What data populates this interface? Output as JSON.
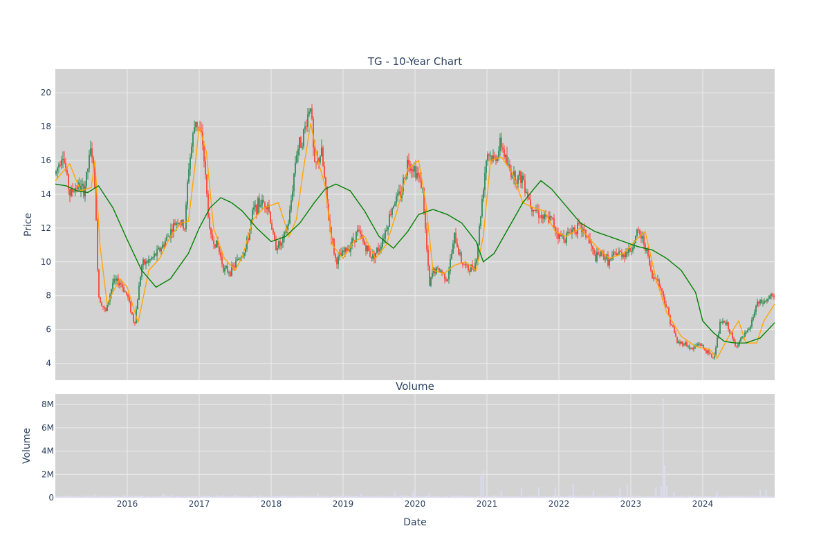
{
  "colors": {
    "plot_bg": "#d3d3d3",
    "grid": "#ececec",
    "increasing": "#2e8b57",
    "decreasing": "#ff4136",
    "ma_short": "#ffa500",
    "ma_long": "#008000",
    "volume": "#dcdcf0"
  },
  "chart_data": [
    {
      "type": "candlestick",
      "title": "TG - 10-Year Chart",
      "xlabel": "",
      "ylabel": "Price",
      "ylim": [
        3,
        21.4
      ],
      "yticks": [
        4,
        6,
        8,
        10,
        12,
        14,
        16,
        18,
        20
      ],
      "xlim": [
        2015.0,
        2025.0
      ],
      "grid": true,
      "close_approx": {
        "x": [
          2015.0,
          2015.1,
          2015.2,
          2015.3,
          2015.4,
          2015.5,
          2015.55,
          2015.6,
          2015.7,
          2015.8,
          2015.9,
          2016.0,
          2016.1,
          2016.2,
          2016.35,
          2016.5,
          2016.6,
          2016.7,
          2016.8,
          2016.85,
          2016.95,
          2017.05,
          2017.15,
          2017.25,
          2017.35,
          2017.45,
          2017.55,
          2017.65,
          2017.75,
          2017.85,
          2017.95,
          2018.05,
          2018.15,
          2018.25,
          2018.35,
          2018.45,
          2018.55,
          2018.6,
          2018.7,
          2018.8,
          2018.9,
          2019.0,
          2019.1,
          2019.2,
          2019.3,
          2019.4,
          2019.5,
          2019.6,
          2019.7,
          2019.8,
          2019.9,
          2020.0,
          2020.1,
          2020.2,
          2020.25,
          2020.35,
          2020.45,
          2020.55,
          2020.65,
          2020.75,
          2020.85,
          2020.95,
          2021.0,
          2021.1,
          2021.2,
          2021.3,
          2021.4,
          2021.5,
          2021.6,
          2021.7,
          2021.8,
          2021.9,
          2022.0,
          2022.1,
          2022.2,
          2022.3,
          2022.4,
          2022.5,
          2022.6,
          2022.7,
          2022.8,
          2022.9,
          2023.0,
          2023.1,
          2023.2,
          2023.3,
          2023.35,
          2023.45,
          2023.55,
          2023.65,
          2023.75,
          2023.85,
          2023.95,
          2024.05,
          2024.15,
          2024.25,
          2024.35,
          2024.45,
          2024.55,
          2024.65,
          2024.75,
          2024.85,
          2024.95,
          2025.0
        ],
        "y": [
          15.2,
          16.5,
          14.0,
          14.5,
          14.2,
          16.8,
          14.5,
          8.0,
          7.0,
          8.8,
          8.8,
          8.0,
          6.3,
          9.8,
          10.2,
          11.0,
          11.8,
          12.5,
          12.0,
          15.5,
          18.5,
          17.0,
          11.5,
          11.0,
          9.5,
          9.5,
          10.2,
          10.8,
          13.0,
          13.5,
          13.5,
          11.0,
          11.0,
          12.5,
          16.5,
          17.5,
          19.5,
          15.5,
          16.5,
          12.5,
          10.0,
          10.5,
          11.0,
          11.8,
          11.0,
          10.3,
          10.8,
          12.0,
          13.5,
          14.0,
          16.0,
          15.5,
          14.5,
          8.5,
          9.5,
          9.5,
          9.0,
          11.5,
          10.0,
          9.5,
          10.0,
          14.5,
          16.5,
          16.0,
          17.0,
          15.5,
          15.0,
          15.0,
          13.5,
          13.0,
          12.5,
          12.5,
          11.5,
          11.5,
          12.0,
          12.0,
          11.5,
          10.2,
          10.5,
          10.0,
          10.5,
          10.5,
          10.7,
          11.8,
          11.0,
          9.0,
          9.2,
          8.0,
          6.5,
          5.2,
          5.2,
          4.8,
          5.2,
          4.7,
          4.3,
          6.5,
          6.2,
          5.0,
          5.5,
          6.0,
          7.5,
          7.6,
          8.0,
          7.8
        ]
      },
      "series": [
        {
          "kind": "ma_short",
          "x": [
            2015.0,
            2015.2,
            2015.35,
            2015.5,
            2015.55,
            2015.62,
            2015.72,
            2015.8,
            2015.9,
            2016.0,
            2016.15,
            2016.3,
            2016.45,
            2016.6,
            2016.75,
            2016.85,
            2016.95,
            2017.0,
            2017.1,
            2017.2,
            2017.35,
            2017.5,
            2017.6,
            2017.75,
            2017.9,
            2018.1,
            2018.25,
            2018.35,
            2018.45,
            2018.55,
            2018.65,
            2018.75,
            2018.85,
            2019.0,
            2019.15,
            2019.3,
            2019.45,
            2019.6,
            2019.75,
            2019.9,
            2020.05,
            2020.15,
            2020.25,
            2020.4,
            2020.55,
            2020.7,
            2020.85,
            2020.95,
            2021.05,
            2021.2,
            2021.35,
            2021.5,
            2021.65,
            2021.8,
            2021.95,
            2022.1,
            2022.3,
            2022.5,
            2022.7,
            2022.9,
            2023.05,
            2023.2,
            2023.35,
            2023.5,
            2023.7,
            2023.9,
            2024.1,
            2024.2,
            2024.35,
            2024.5,
            2024.6,
            2024.75,
            2024.85,
            2025.0
          ],
          "y": [
            14.8,
            15.8,
            14.2,
            14.4,
            16.0,
            11.0,
            7.5,
            8.2,
            9.0,
            8.5,
            6.4,
            9.5,
            10.2,
            11.5,
            12.3,
            12.4,
            16.0,
            18.0,
            16.5,
            12.0,
            10.2,
            9.5,
            10.3,
            12.5,
            13.2,
            13.5,
            11.5,
            12.5,
            15.5,
            18.2,
            16.0,
            14.5,
            11.0,
            10.2,
            11.2,
            11.5,
            10.2,
            11.0,
            13.0,
            15.5,
            16.0,
            13.5,
            9.5,
            9.3,
            9.8,
            10.0,
            9.5,
            11.5,
            16.0,
            16.2,
            15.3,
            13.5,
            13.2,
            13.0,
            11.8,
            11.5,
            12.0,
            11.0,
            10.2,
            10.5,
            11.2,
            11.8,
            9.0,
            7.0,
            5.6,
            5.0,
            4.8,
            4.3,
            5.5,
            6.5,
            5.2,
            5.2,
            6.5,
            7.5
          ]
        },
        {
          "kind": "ma_long",
          "x": [
            2015.0,
            2015.15,
            2015.3,
            2015.45,
            2015.6,
            2015.8,
            2016.0,
            2016.2,
            2016.4,
            2016.6,
            2016.85,
            2017.0,
            2017.15,
            2017.3,
            2017.45,
            2017.6,
            2017.8,
            2018.0,
            2018.2,
            2018.4,
            2018.6,
            2018.75,
            2018.9,
            2019.1,
            2019.3,
            2019.5,
            2019.7,
            2019.9,
            2020.05,
            2020.25,
            2020.45,
            2020.65,
            2020.85,
            2020.95,
            2021.1,
            2021.3,
            2021.5,
            2021.65,
            2021.75,
            2021.9,
            2022.1,
            2022.3,
            2022.5,
            2022.7,
            2022.9,
            2023.1,
            2023.3,
            2023.5,
            2023.7,
            2023.9,
            2024.0,
            2024.15,
            2024.3,
            2024.45,
            2024.6,
            2024.8,
            2025.0
          ],
          "y": [
            14.6,
            14.5,
            14.2,
            14.1,
            14.5,
            13.2,
            11.3,
            9.5,
            8.5,
            9.0,
            10.5,
            12.0,
            13.2,
            13.8,
            13.5,
            13.0,
            12.0,
            11.2,
            11.5,
            12.3,
            13.5,
            14.3,
            14.6,
            14.2,
            13.0,
            11.5,
            10.8,
            11.8,
            12.8,
            13.1,
            12.8,
            12.3,
            11.2,
            10.0,
            10.5,
            12.0,
            13.5,
            14.3,
            14.8,
            14.3,
            13.3,
            12.3,
            11.8,
            11.5,
            11.2,
            10.9,
            10.7,
            10.2,
            9.5,
            8.2,
            6.5,
            5.8,
            5.3,
            5.2,
            5.2,
            5.5,
            6.4
          ]
        }
      ]
    },
    {
      "type": "bar",
      "title": "Volume",
      "xlabel": "Date",
      "ylabel": "Volume",
      "ylim": [
        0,
        8.9
      ],
      "ytick_values": [
        0,
        2,
        4,
        6,
        8
      ],
      "ytick_labels": [
        "0",
        "2M",
        "4M",
        "6M",
        "8M"
      ],
      "xtick_values": [
        2016,
        2017,
        2018,
        2019,
        2020,
        2021,
        2022,
        2023,
        2024
      ],
      "xtick_labels": [
        "2016",
        "2017",
        "2018",
        "2019",
        "2020",
        "2021",
        "2022",
        "2023",
        "2024"
      ],
      "spikes_millions": [
        {
          "x": 2015.55,
          "v": 0.3
        },
        {
          "x": 2016.5,
          "v": 0.35
        },
        {
          "x": 2017.5,
          "v": 0.25
        },
        {
          "x": 2018.65,
          "v": 0.4
        },
        {
          "x": 2019.25,
          "v": 0.35
        },
        {
          "x": 2019.72,
          "v": 0.5
        },
        {
          "x": 2019.97,
          "v": 0.55
        },
        {
          "x": 2020.2,
          "v": 0.4
        },
        {
          "x": 2020.92,
          "v": 1.9
        },
        {
          "x": 2020.95,
          "v": 2.3
        },
        {
          "x": 2021.2,
          "v": 0.6
        },
        {
          "x": 2021.48,
          "v": 0.8
        },
        {
          "x": 2021.72,
          "v": 0.9
        },
        {
          "x": 2021.95,
          "v": 0.9
        },
        {
          "x": 2022.2,
          "v": 1.2
        },
        {
          "x": 2022.48,
          "v": 0.6
        },
        {
          "x": 2022.85,
          "v": 0.8
        },
        {
          "x": 2022.95,
          "v": 1.1
        },
        {
          "x": 2023.35,
          "v": 0.9
        },
        {
          "x": 2023.42,
          "v": 1.0
        },
        {
          "x": 2023.45,
          "v": 8.5
        },
        {
          "x": 2023.47,
          "v": 2.8
        },
        {
          "x": 2023.5,
          "v": 1.0
        },
        {
          "x": 2023.6,
          "v": 0.5
        },
        {
          "x": 2024.2,
          "v": 0.5
        },
        {
          "x": 2024.8,
          "v": 0.7
        },
        {
          "x": 2024.88,
          "v": 0.7
        }
      ]
    }
  ]
}
